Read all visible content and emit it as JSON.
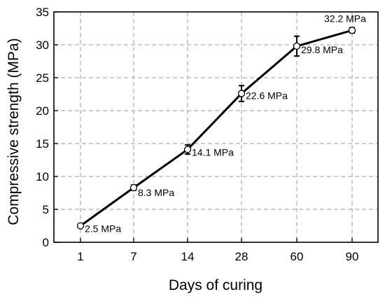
{
  "chart_data": {
    "type": "line",
    "xlabel": "Days of curing",
    "ylabel": "Compressive strength (MPa)",
    "categories": [
      "1",
      "7",
      "14",
      "28",
      "60",
      "90"
    ],
    "ylim": [
      0,
      35
    ],
    "yticks": [
      "0",
      "5",
      "10",
      "15",
      "20",
      "25",
      "30",
      "35"
    ],
    "grid": true,
    "series": [
      {
        "values": [
          2.5,
          8.3,
          14.1,
          22.6,
          29.8,
          32.2
        ],
        "errors": [
          0.2,
          0.4,
          0.7,
          1.2,
          1.5,
          0.4
        ],
        "labels": [
          "2.5 MPa",
          "8.3 MPa",
          "14.1 MPa",
          "22.6 MPa",
          "29.8 MPa",
          "32.2 MPa"
        ]
      }
    ]
  }
}
